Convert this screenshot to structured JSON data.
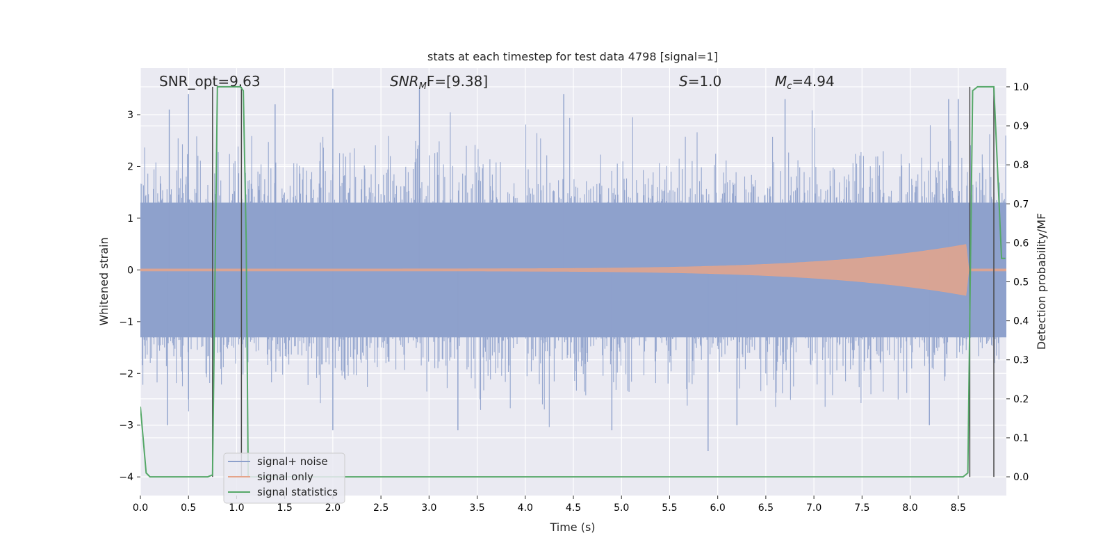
{
  "chart_data": {
    "type": "line",
    "title": "stats at each timestep for test data 4798 [signal=1]",
    "xlabel": "Time (s)",
    "ylabel": "Whitened strain",
    "y2label": "Detection probability/MF",
    "xlim": [
      0.0,
      9.0
    ],
    "ylim": [
      -4.36,
      3.9
    ],
    "y2lim": [
      -0.048,
      1.048
    ],
    "xticks": [
      "0.0",
      "0.5",
      "1.0",
      "1.5",
      "2.0",
      "2.5",
      "3.0",
      "3.5",
      "4.0",
      "4.5",
      "5.0",
      "5.5",
      "6.0",
      "6.5",
      "7.0",
      "7.5",
      "8.0",
      "8.5"
    ],
    "yticks": [
      "3",
      "2",
      "1",
      "0",
      "−1",
      "−2",
      "−3",
      "−4"
    ],
    "y2ticks": [
      "1.0",
      "0.9",
      "0.8",
      "0.7",
      "0.6",
      "0.5",
      "0.4",
      "0.3",
      "0.2",
      "0.1",
      "0.0"
    ],
    "grid": true,
    "legend_position": "lower-left",
    "annotations": {
      "snr_opt": "SNR_opt=9.63",
      "snr_mf_main": "SNR",
      "snr_mf_sub": "M",
      "snr_mf_rest": "F=[9.38]",
      "s_main": "S",
      "s_rest": "=1.0",
      "mc_main": "M",
      "mc_sub": "c",
      "mc_rest": "=4.94"
    },
    "series": [
      {
        "name": "signal+ noise",
        "color": "#8da0cb",
        "kind": "noise-envelope",
        "core_range": [
          -1.3,
          1.3
        ],
        "spikes": [
          [
            0.5,
            3.4
          ],
          [
            0.3,
            3.1
          ],
          [
            1.4,
            3.2
          ],
          [
            2.0,
            3.5
          ],
          [
            2.9,
            3.5
          ],
          [
            4.4,
            3.4
          ],
          [
            6.7,
            3.3
          ],
          [
            8.4,
            3.3
          ],
          [
            8.5,
            3.3
          ],
          [
            0.28,
            -3.0
          ],
          [
            2.0,
            -3.1
          ],
          [
            3.3,
            -3.1
          ],
          [
            4.9,
            -3.1
          ],
          [
            5.9,
            -3.5
          ],
          [
            6.2,
            -3.0
          ],
          [
            8.2,
            -3.0
          ],
          [
            0.5,
            -2.5
          ]
        ]
      },
      {
        "name": "signal only",
        "color": "#e5a48a",
        "kind": "chirp",
        "start_amp": 0.02,
        "peak_time": 8.6,
        "peak_amp": 0.5
      },
      {
        "name": "signal statistics",
        "color": "#55a868",
        "axis": "right",
        "x": [
          0.0,
          0.06,
          0.1,
          0.7,
          0.75,
          0.8,
          0.82,
          1.04,
          1.07,
          1.1,
          1.12,
          8.55,
          8.6,
          8.65,
          8.7,
          8.8,
          8.87,
          8.95,
          8.99
        ],
        "y": [
          0.18,
          0.01,
          0.0,
          0.0,
          0.005,
          1.0,
          1.0,
          1.0,
          0.99,
          0.6,
          0.0,
          0.0,
          0.01,
          0.99,
          1.0,
          1.0,
          1.0,
          0.56,
          0.56
        ]
      }
    ],
    "vertical_markers": [
      0.75,
      1.05,
      8.62,
      8.87
    ]
  }
}
